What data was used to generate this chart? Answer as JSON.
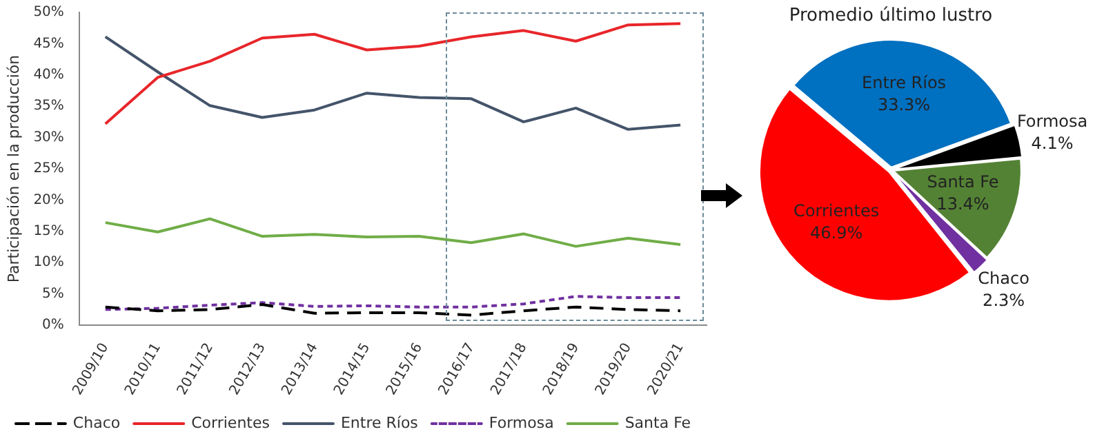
{
  "chart_data": [
    {
      "type": "line",
      "ylabel": "Participación en la producción",
      "categories": [
        "2009/10",
        "2010/11",
        "2011/12",
        "2012/13",
        "2013/14",
        "2014/15",
        "2015/16",
        "2016/17",
        "2017/18",
        "2018/19",
        "2019/20",
        "2020/21"
      ],
      "ylim": [
        0,
        50
      ],
      "yticks": [
        {
          "value": 0,
          "label": "0%"
        },
        {
          "value": 5,
          "label": "5%"
        },
        {
          "value": 10,
          "label": "10%"
        },
        {
          "value": 15,
          "label": "15%"
        },
        {
          "value": 20,
          "label": "20%"
        },
        {
          "value": 25,
          "label": "25%"
        },
        {
          "value": 30,
          "label": "30%"
        },
        {
          "value": 35,
          "label": "35%"
        },
        {
          "value": 40,
          "label": "40%"
        },
        {
          "value": 45,
          "label": "45%"
        },
        {
          "value": 50,
          "label": "50%"
        }
      ],
      "grid": false,
      "legend": "bottom",
      "marker": "none",
      "series": [
        {
          "name": "Chaco",
          "color": "#000000",
          "line_style": "dashed",
          "values": [
            2.9,
            2.3,
            2.5,
            3.3,
            1.9,
            2.0,
            2.0,
            1.6,
            2.3,
            2.9,
            2.5,
            2.3
          ]
        },
        {
          "name": "Corrientes",
          "color": "#e8262a",
          "line_style": "solid",
          "values": [
            32.2,
            39.6,
            42.2,
            45.9,
            46.5,
            44.0,
            44.6,
            46.1,
            47.1,
            45.4,
            48.0,
            48.2
          ]
        },
        {
          "name": "Entre Ríos",
          "color": "#44546a",
          "line_style": "solid",
          "values": [
            46.1,
            40.5,
            35.1,
            33.2,
            34.4,
            37.1,
            36.4,
            36.2,
            32.5,
            34.7,
            31.3,
            32.0
          ]
        },
        {
          "name": "Formosa",
          "color": "#7030a0",
          "line_style": "dotted",
          "values": [
            2.5,
            2.7,
            3.2,
            3.6,
            3.0,
            3.1,
            2.9,
            2.9,
            3.4,
            4.6,
            4.4,
            4.4
          ]
        },
        {
          "name": "Santa Fe",
          "color": "#70ad47",
          "line_style": "solid",
          "values": [
            16.4,
            14.9,
            17.0,
            14.2,
            14.5,
            14.1,
            14.2,
            13.2,
            14.6,
            12.6,
            13.9,
            12.9
          ]
        }
      ]
    },
    {
      "type": "pie",
      "title": "Promedio último lustro",
      "categories": [
        "Entre Ríos",
        "Formosa",
        "Santa Fe",
        "Chaco",
        "Corrientes"
      ],
      "values": [
        33.3,
        4.1,
        13.4,
        2.3,
        46.9
      ],
      "colors": [
        "#0070c0",
        "#000000",
        "#548235",
        "#7030a0",
        "#ff0000"
      ],
      "value_labels": [
        "33.3%",
        "4.1%",
        "13.4%",
        "2.3%",
        "46.9%"
      ],
      "legend": false
    }
  ]
}
